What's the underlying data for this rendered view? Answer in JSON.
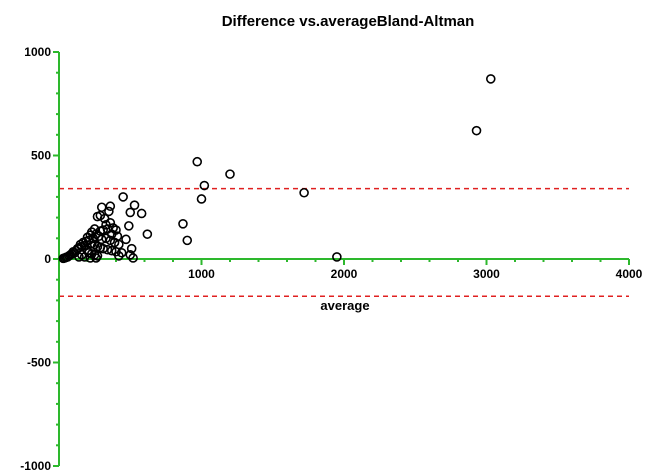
{
  "chart_data": {
    "type": "scatter",
    "title": "Difference vs.averageBland-Altman",
    "xlabel": "average",
    "ylabel": "",
    "xlim": [
      0,
      4000
    ],
    "ylim": [
      -1000,
      1000
    ],
    "x_ticks": [
      {
        "value": 1000,
        "label": "1000"
      },
      {
        "value": 2000,
        "label": "2000"
      },
      {
        "value": 3000,
        "label": "3000"
      },
      {
        "value": 4000,
        "label": "4000"
      }
    ],
    "y_ticks": [
      {
        "value": 1000,
        "label": "1000"
      },
      {
        "value": 500,
        "label": "500"
      },
      {
        "value": 0,
        "label": "0"
      },
      {
        "value": -500,
        "label": "-500"
      },
      {
        "value": -1000,
        "label": "-1000"
      }
    ],
    "axis_color": "#2db82d",
    "marker_color": "#000000",
    "limit_line_color": "#e02020",
    "grid": false,
    "reference_lines": [
      {
        "y": 340,
        "style": "dashed"
      },
      {
        "y": -180,
        "style": "dashed"
      }
    ],
    "points": [
      [
        3030,
        870
      ],
      [
        2930,
        620
      ],
      [
        1200,
        410
      ],
      [
        970,
        470
      ],
      [
        1020,
        355
      ],
      [
        1000,
        290
      ],
      [
        1720,
        320
      ],
      [
        1950,
        10
      ],
      [
        870,
        170
      ],
      [
        900,
        90
      ],
      [
        450,
        300
      ],
      [
        530,
        260
      ],
      [
        580,
        220
      ],
      [
        620,
        120
      ],
      [
        500,
        225
      ],
      [
        490,
        160
      ],
      [
        470,
        95
      ],
      [
        510,
        50
      ],
      [
        500,
        20
      ],
      [
        520,
        5
      ],
      [
        360,
        255
      ],
      [
        350,
        230
      ],
      [
        300,
        250
      ],
      [
        290,
        210
      ],
      [
        270,
        205
      ],
      [
        320,
        195
      ],
      [
        330,
        165
      ],
      [
        360,
        175
      ],
      [
        380,
        150
      ],
      [
        400,
        140
      ],
      [
        340,
        145
      ],
      [
        310,
        140
      ],
      [
        290,
        135
      ],
      [
        370,
        120
      ],
      [
        410,
        110
      ],
      [
        250,
        145
      ],
      [
        230,
        130
      ],
      [
        260,
        120
      ],
      [
        280,
        110
      ],
      [
        240,
        100
      ],
      [
        300,
        95
      ],
      [
        330,
        100
      ],
      [
        360,
        90
      ],
      [
        390,
        80
      ],
      [
        420,
        70
      ],
      [
        220,
        115
      ],
      [
        200,
        105
      ],
      [
        210,
        90
      ],
      [
        190,
        85
      ],
      [
        170,
        80
      ],
      [
        180,
        65
      ],
      [
        160,
        60
      ],
      [
        150,
        70
      ],
      [
        140,
        55
      ],
      [
        130,
        50
      ],
      [
        230,
        75
      ],
      [
        250,
        70
      ],
      [
        270,
        60
      ],
      [
        290,
        55
      ],
      [
        310,
        50
      ],
      [
        340,
        45
      ],
      [
        370,
        40
      ],
      [
        400,
        35
      ],
      [
        440,
        30
      ],
      [
        420,
        15
      ],
      [
        120,
        40
      ],
      [
        110,
        30
      ],
      [
        100,
        35
      ],
      [
        90,
        25
      ],
      [
        80,
        20
      ],
      [
        70,
        15
      ],
      [
        60,
        10
      ],
      [
        50,
        8
      ],
      [
        40,
        5
      ],
      [
        30,
        3
      ],
      [
        200,
        40
      ],
      [
        210,
        30
      ],
      [
        230,
        25
      ],
      [
        250,
        20
      ],
      [
        270,
        15
      ],
      [
        180,
        10
      ],
      [
        160,
        20
      ],
      [
        140,
        10
      ],
      [
        220,
        5
      ],
      [
        260,
        5
      ]
    ]
  }
}
